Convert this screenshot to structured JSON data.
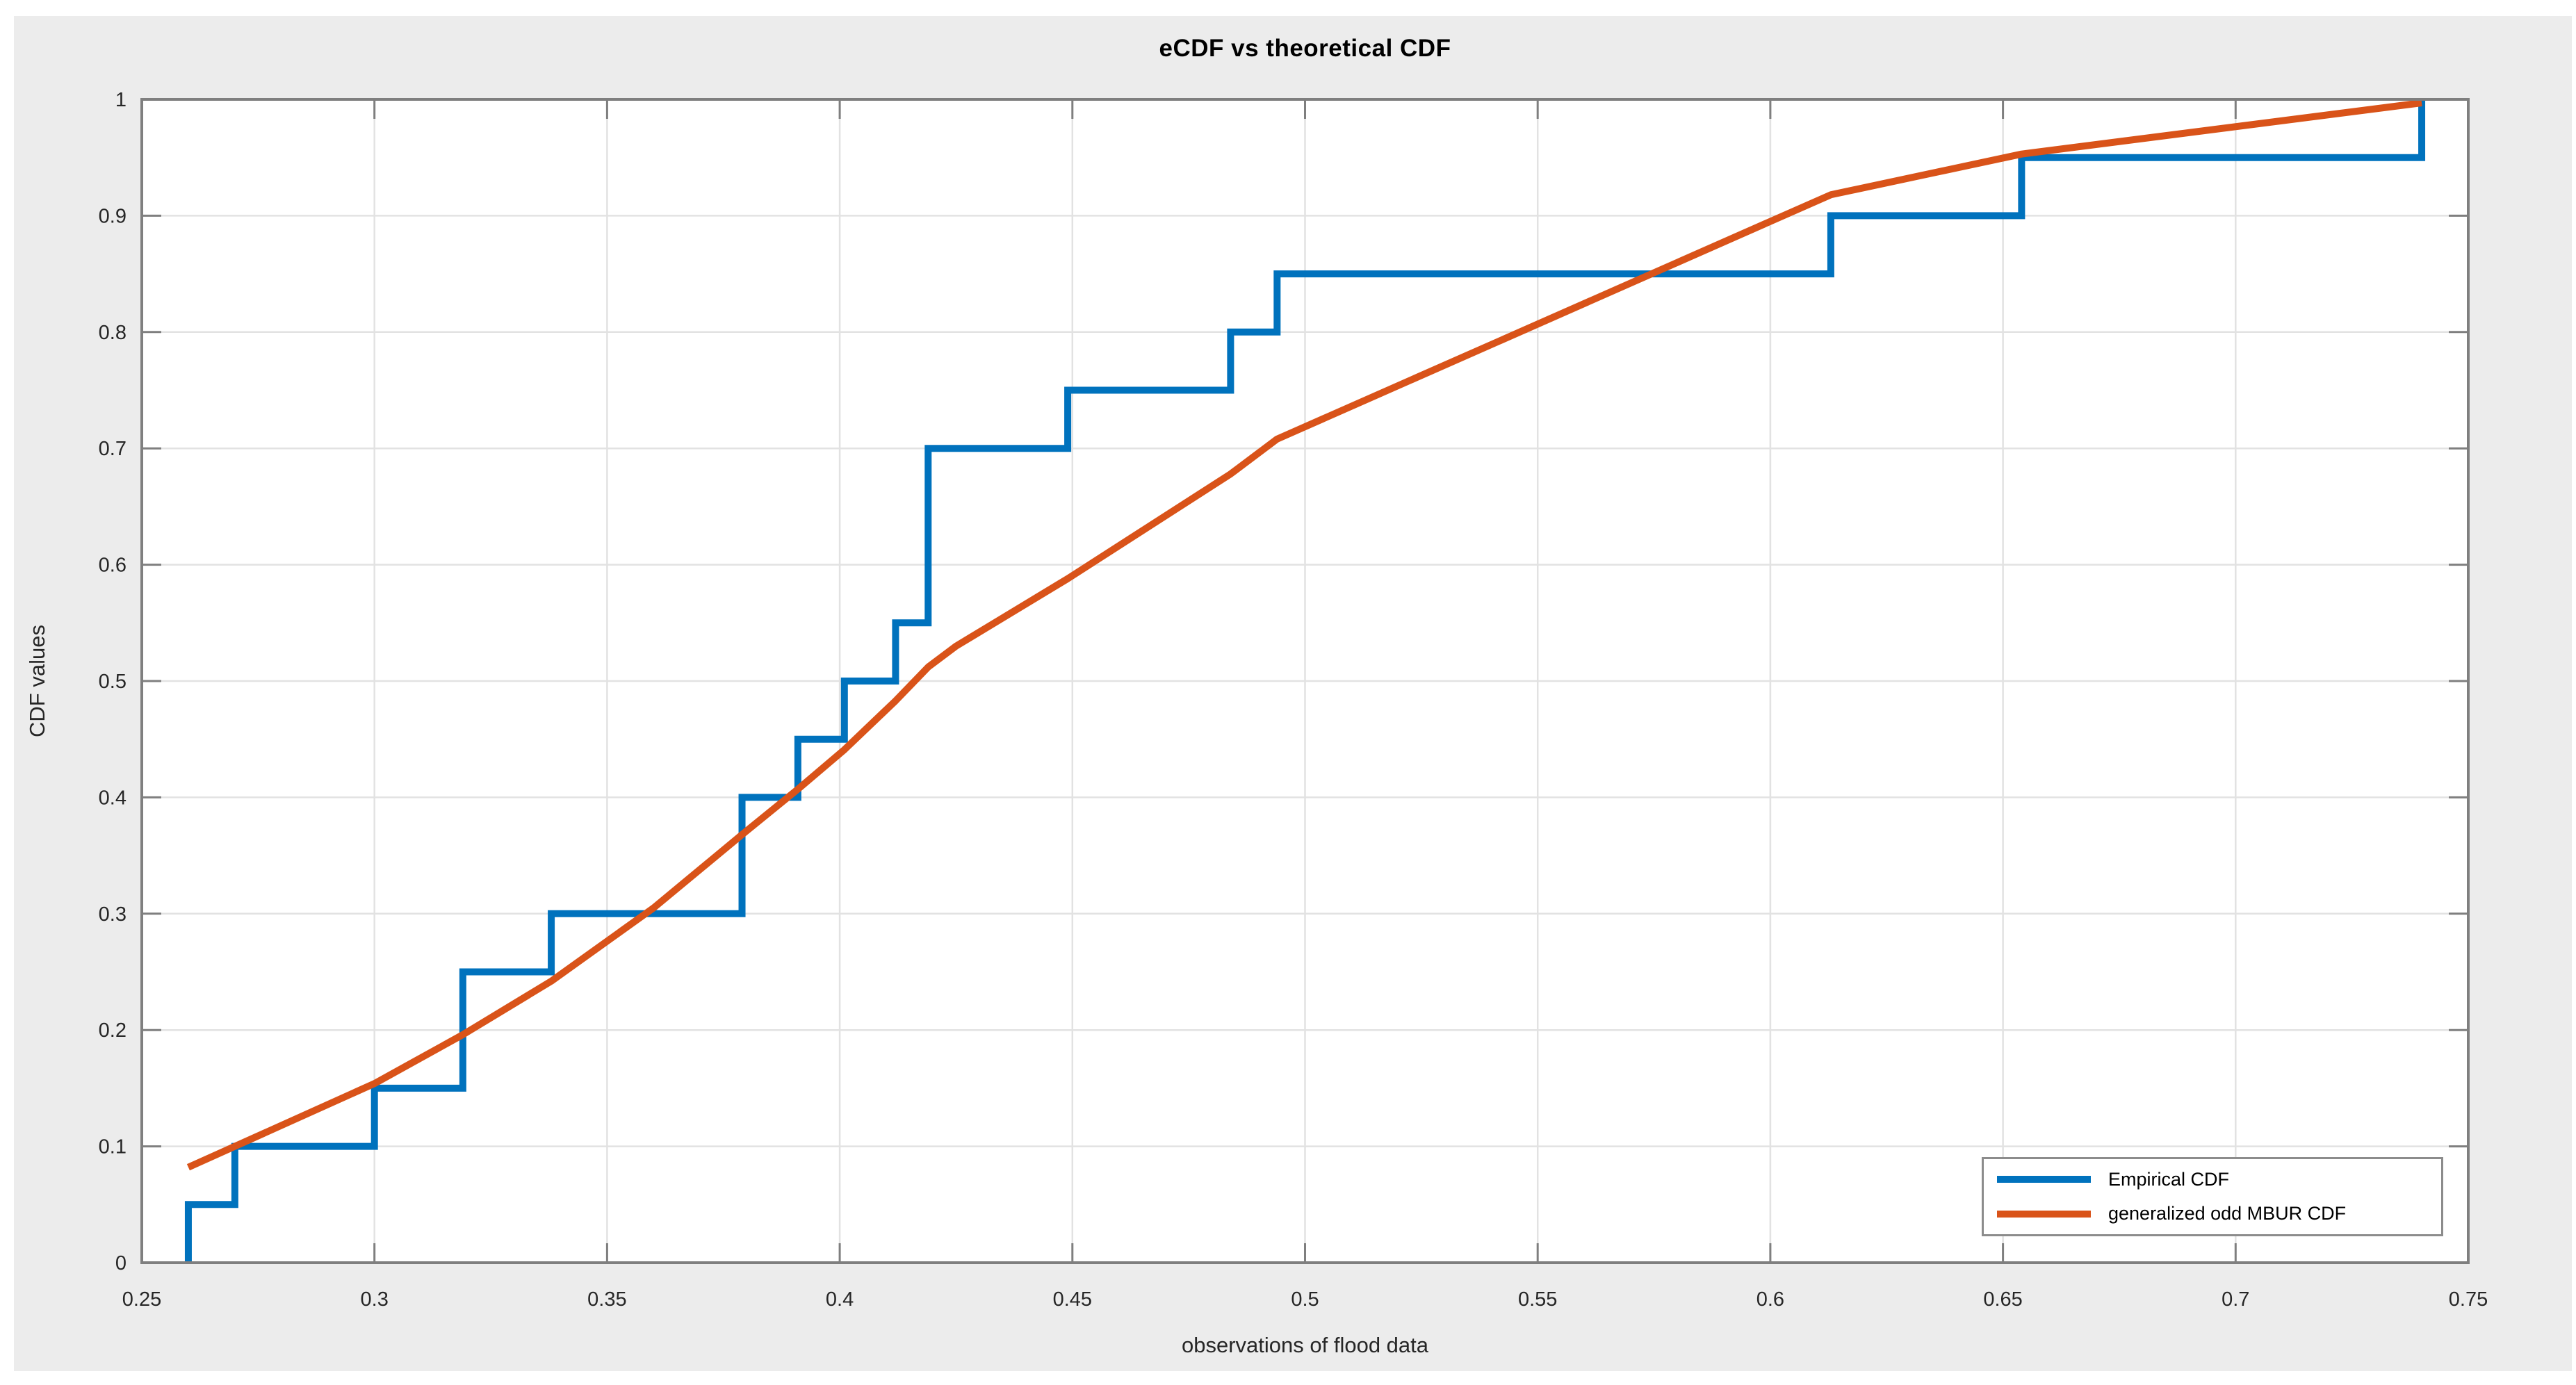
{
  "figure": {
    "background_color": "#ECECEC",
    "plot_background_color": "#FFFFFF",
    "axis_color": "#7F7F7F",
    "grid_color": "#E2E2E2",
    "tick_label_color": "#262626",
    "legend_border_color": "#8C8C8C"
  },
  "chart_data": {
    "type": "line",
    "title": "eCDF vs theoretical CDF",
    "xlabel": "observations of flood data",
    "ylabel": "CDF values",
    "xlim": [
      0.25,
      0.75
    ],
    "ylim": [
      0,
      1
    ],
    "xtick_values": [
      0.25,
      0.3,
      0.35,
      0.4,
      0.45,
      0.5,
      0.55,
      0.6,
      0.65,
      0.7,
      0.75
    ],
    "xtick_labels": [
      "0.25",
      "0.3",
      "0.35",
      "0.4",
      "0.45",
      "0.5",
      "0.55",
      "0.6",
      "0.65",
      "0.7",
      "0.75"
    ],
    "ytick_values": [
      0,
      0.1,
      0.2,
      0.3,
      0.4,
      0.5,
      0.6,
      0.7,
      0.8,
      0.9,
      1
    ],
    "ytick_labels": [
      "0",
      "0.1",
      "0.2",
      "0.3",
      "0.4",
      "0.5",
      "0.6",
      "0.7",
      "0.8",
      "0.9",
      "1"
    ],
    "grid": true,
    "legend_position": "southeast",
    "series": [
      {
        "name": "Empirical CDF",
        "type": "step",
        "color": "#0072BD",
        "line_width": 10,
        "steps": [
          [
            0.26,
            0.05
          ],
          [
            0.27,
            0.1
          ],
          [
            0.3,
            0.15
          ],
          [
            0.319,
            0.25
          ],
          [
            0.338,
            0.3
          ],
          [
            0.379,
            0.4
          ],
          [
            0.391,
            0.45
          ],
          [
            0.401,
            0.5
          ],
          [
            0.412,
            0.55
          ],
          [
            0.419,
            0.7
          ],
          [
            0.449,
            0.75
          ],
          [
            0.484,
            0.8
          ],
          [
            0.494,
            0.85
          ],
          [
            0.613,
            0.9
          ],
          [
            0.654,
            0.95
          ],
          [
            0.74,
            1.0
          ]
        ]
      },
      {
        "name": "generalized odd MBUR CDF",
        "type": "line",
        "color": "#D95319",
        "line_width": 10,
        "points": [
          [
            0.26,
            0.082
          ],
          [
            0.27,
            0.1
          ],
          [
            0.3,
            0.154
          ],
          [
            0.319,
            0.196
          ],
          [
            0.338,
            0.242
          ],
          [
            0.36,
            0.305
          ],
          [
            0.379,
            0.368
          ],
          [
            0.391,
            0.407
          ],
          [
            0.401,
            0.441
          ],
          [
            0.412,
            0.483
          ],
          [
            0.419,
            0.512
          ],
          [
            0.425,
            0.53
          ],
          [
            0.449,
            0.588
          ],
          [
            0.484,
            0.678
          ],
          [
            0.494,
            0.708
          ],
          [
            0.613,
            0.918
          ],
          [
            0.654,
            0.953
          ],
          [
            0.74,
            0.997
          ]
        ]
      }
    ]
  }
}
